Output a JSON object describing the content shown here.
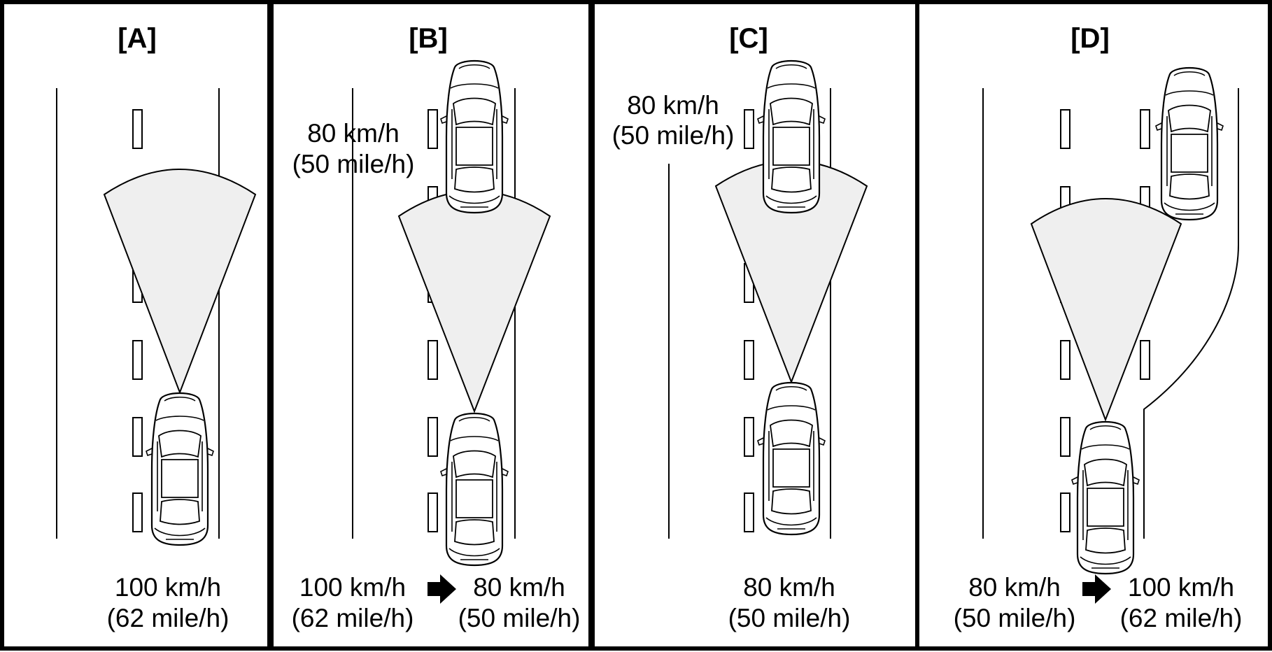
{
  "panels": [
    {
      "title": "[A]",
      "speed_bottom": {
        "line1": "100 km/h",
        "line2": "(62 mile/h)"
      }
    },
    {
      "title": "[B]",
      "speed_top": {
        "line1": "80 km/h",
        "line2": "(50 mile/h)"
      },
      "speed_bottom_from": {
        "line1": "100 km/h",
        "line2": "(62 mile/h)"
      },
      "speed_bottom_to": {
        "line1": "80 km/h",
        "line2": "(50 mile/h)"
      }
    },
    {
      "title": "[C]",
      "speed_top": {
        "line1": "80 km/h",
        "line2": "(50 mile/h)"
      },
      "speed_bottom": {
        "line1": "80 km/h",
        "line2": "(50 mile/h)"
      }
    },
    {
      "title": "[D]",
      "speed_bottom_from": {
        "line1": "80 km/h",
        "line2": "(50 mile/h)"
      },
      "speed_bottom_to": {
        "line1": "100 km/h",
        "line2": "(62 mile/h)"
      }
    }
  ]
}
